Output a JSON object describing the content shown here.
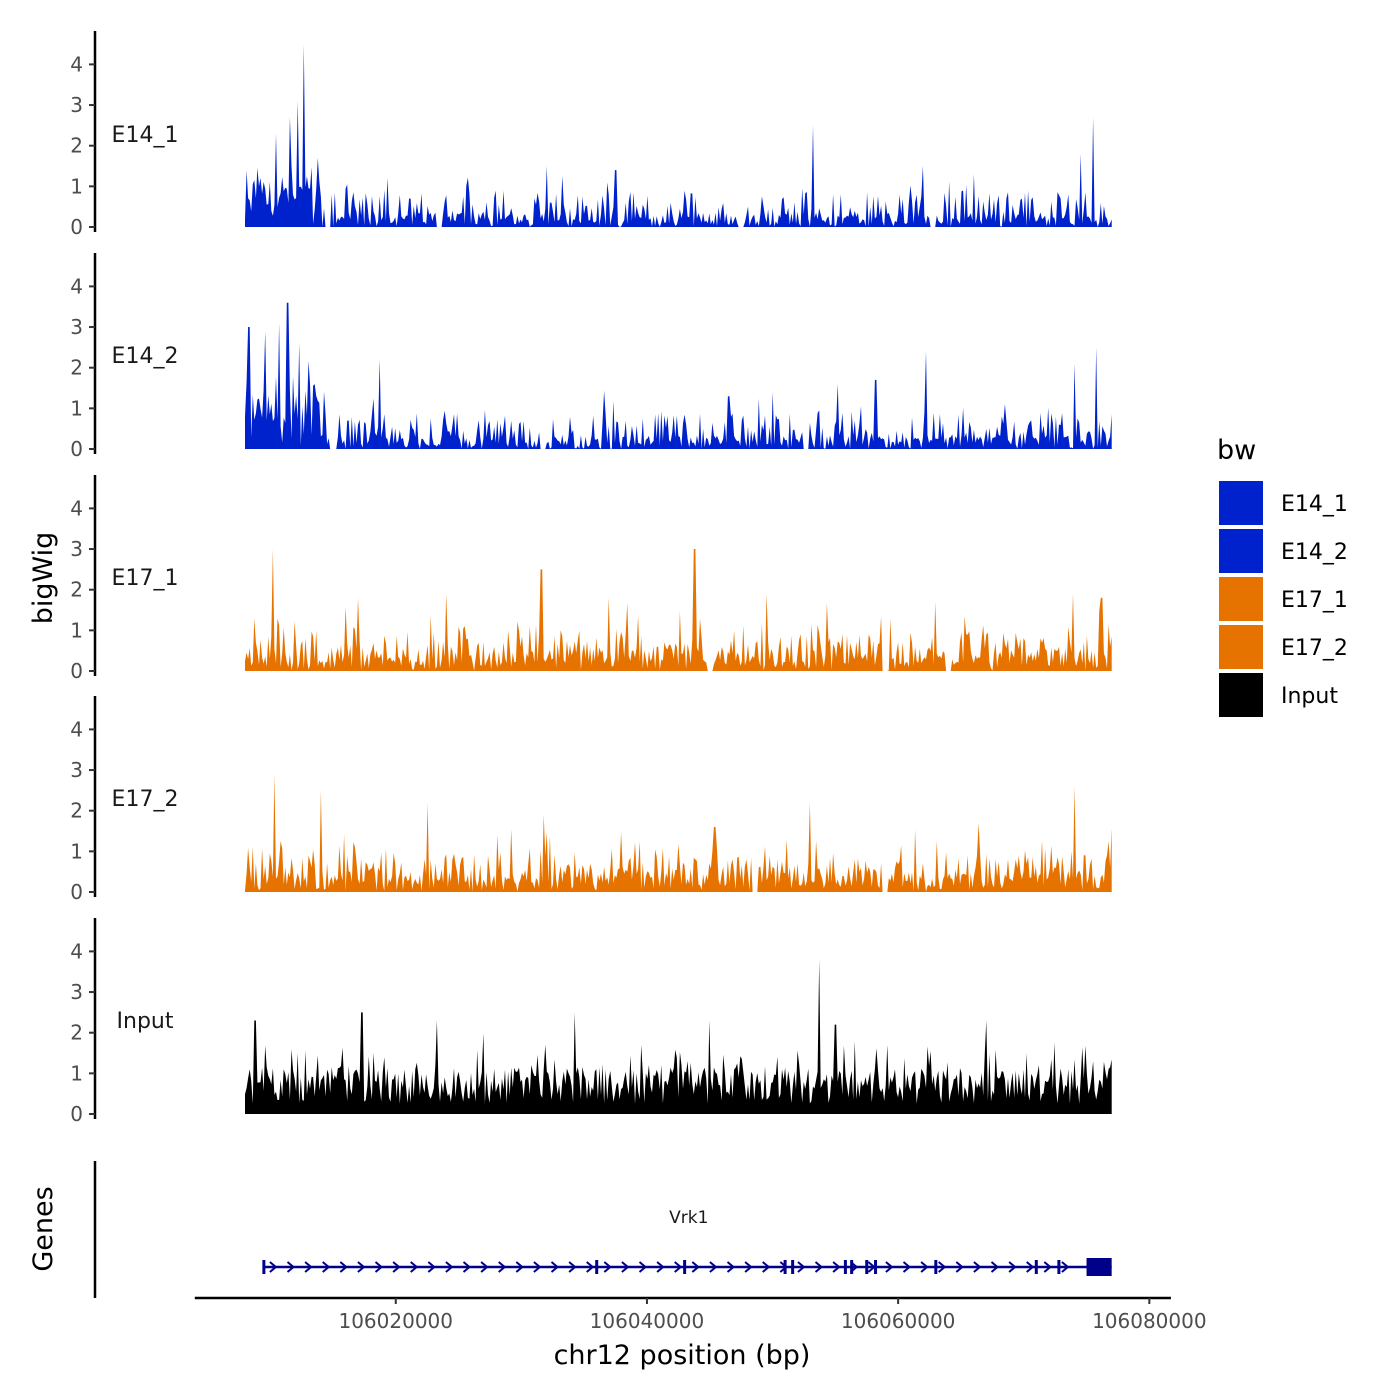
{
  "chart_data": {
    "type": "area",
    "ylabel": "bigWig",
    "genes_label": "Genes",
    "xlabel": "chr12 position (bp)",
    "x_range": [
      106004000,
      106081000
    ],
    "x_data_range": [
      106008000,
      106077000
    ],
    "x_ticks": [
      106020000,
      106040000,
      106060000,
      106080000
    ],
    "x_tick_labels": [
      "106020000",
      "106040000",
      "106060000",
      "106080000"
    ],
    "y_range": [
      0,
      4.6
    ],
    "y_ticks": [
      0,
      1,
      2,
      3,
      4
    ],
    "y_tick_labels": [
      "0",
      "1",
      "2",
      "3",
      "4"
    ],
    "legend": {
      "title": "bw",
      "position": "right",
      "items": [
        {
          "label": "E14_1",
          "color": "#0022cc"
        },
        {
          "label": "E14_2",
          "color": "#0022cc"
        },
        {
          "label": "E17_1",
          "color": "#e67300"
        },
        {
          "label": "E17_2",
          "color": "#e67300"
        },
        {
          "label": "Input",
          "color": "#000000"
        }
      ]
    },
    "series": [
      {
        "name": "E14_1",
        "color": "#0022cc",
        "peaks": [
          [
            106009000,
            1.2
          ],
          [
            106010500,
            2.3
          ],
          [
            106011600,
            2.7
          ],
          [
            106012200,
            3.1
          ],
          [
            106012700,
            4.5
          ],
          [
            106013800,
            1.7
          ],
          [
            106032000,
            1.5
          ],
          [
            106037500,
            1.4
          ],
          [
            106053200,
            2.5
          ],
          [
            106062000,
            1.5
          ],
          [
            106066000,
            1.3
          ],
          [
            106074500,
            1.8
          ],
          [
            106075500,
            2.7
          ]
        ],
        "gaps": [
          [
            106014300,
            106014800
          ],
          [
            106023200,
            106023700
          ],
          [
            106047200,
            106047700
          ],
          [
            106062500,
            106063000
          ]
        ],
        "seed": 11
      },
      {
        "name": "E14_2",
        "color": "#0022cc",
        "peaks": [
          [
            106008300,
            3.0
          ],
          [
            106009600,
            2.9
          ],
          [
            106010700,
            3.1
          ],
          [
            106011400,
            3.6
          ],
          [
            106012300,
            2.6
          ],
          [
            106018700,
            2.2
          ],
          [
            106046500,
            1.3
          ],
          [
            106050000,
            1.4
          ],
          [
            106055200,
            1.6
          ],
          [
            106058200,
            1.7
          ],
          [
            106062200,
            2.4
          ],
          [
            106074000,
            2.1
          ],
          [
            106075800,
            2.5
          ]
        ],
        "gaps": [
          [
            106014700,
            106015200
          ],
          [
            106031500,
            106032000
          ],
          [
            106052400,
            106052900
          ]
        ],
        "seed": 23
      },
      {
        "name": "E17_1",
        "color": "#e67300",
        "peaks": [
          [
            106010200,
            3.0
          ],
          [
            106017000,
            1.8
          ],
          [
            106024000,
            1.9
          ],
          [
            106031600,
            2.5
          ],
          [
            106037000,
            1.8
          ],
          [
            106043800,
            3.0
          ],
          [
            106049500,
            1.9
          ],
          [
            106063000,
            1.7
          ],
          [
            106073900,
            1.9
          ],
          [
            106076200,
            1.8
          ]
        ],
        "gaps": [
          [
            106044800,
            106045300
          ],
          [
            106058700,
            106059200
          ],
          [
            106063800,
            106064300
          ]
        ],
        "seed": 37
      },
      {
        "name": "E17_2",
        "color": "#e67300",
        "peaks": [
          [
            106010300,
            2.9
          ],
          [
            106014000,
            2.5
          ],
          [
            106022500,
            2.2
          ],
          [
            106031800,
            1.9
          ],
          [
            106045400,
            1.6
          ],
          [
            106053000,
            2.2
          ],
          [
            106066400,
            1.7
          ],
          [
            106074000,
            2.6
          ]
        ],
        "gaps": [
          [
            106048300,
            106048800
          ],
          [
            106058700,
            106059200
          ]
        ],
        "seed": 53
      },
      {
        "name": "Input",
        "color": "#000000",
        "peaks": [
          [
            106008800,
            2.3
          ],
          [
            106017300,
            2.5
          ],
          [
            106023300,
            2.3
          ],
          [
            106034200,
            2.5
          ],
          [
            106045000,
            2.3
          ],
          [
            106053700,
            3.8
          ],
          [
            106055000,
            2.2
          ],
          [
            106067000,
            2.3
          ]
        ],
        "gaps": [],
        "seed": 71
      }
    ],
    "gene": {
      "name": "Vrk1",
      "strand": "+",
      "start": 106009500,
      "end": 106077000,
      "cds_start": 106075000,
      "exons": [
        106009500,
        106036000,
        106043000,
        106051000,
        106051600,
        106055800,
        106056300,
        106057500,
        106058200,
        106063000,
        106071000,
        106072800
      ]
    }
  }
}
